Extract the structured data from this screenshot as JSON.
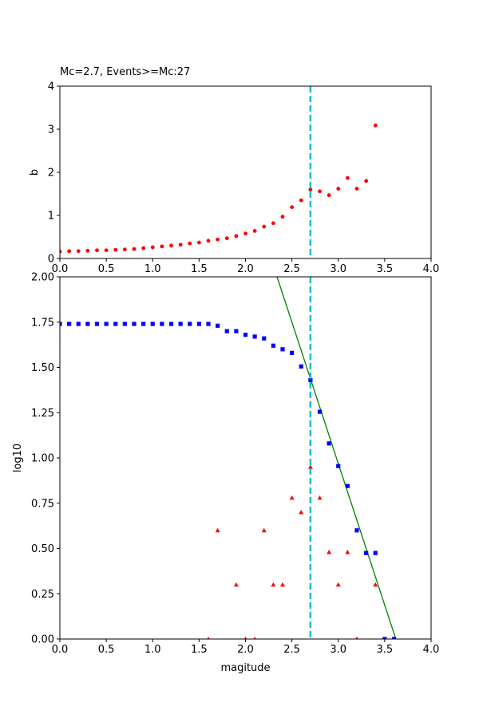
{
  "chart_data": [
    {
      "type": "scatter",
      "title": "Mc=2.7, Events>=Mc:27",
      "xlabel": "",
      "ylabel": "b",
      "xlim": [
        0,
        4
      ],
      "ylim": [
        0,
        4
      ],
      "xticks": [
        "0.0",
        "0.5",
        "1.0",
        "1.5",
        "2.0",
        "2.5",
        "3.0",
        "3.5",
        "4.0"
      ],
      "yticks": [
        "0",
        "1",
        "2",
        "3",
        "4"
      ],
      "grid": false,
      "mc_line": {
        "x": 2.7,
        "color": "#17becf"
      },
      "series": [
        {
          "color": "#ff0000",
          "marker": "circle",
          "x": [
            0.0,
            0.1,
            0.2,
            0.3,
            0.4,
            0.5,
            0.6,
            0.7,
            0.8,
            0.9,
            1.0,
            1.1,
            1.2,
            1.3,
            1.4,
            1.5,
            1.6,
            1.7,
            1.8,
            1.9,
            2.0,
            2.1,
            2.2,
            2.3,
            2.4,
            2.5,
            2.6,
            2.7,
            2.8,
            2.9,
            3.0,
            3.1,
            3.2,
            3.3,
            3.4
          ],
          "y": [
            0.16,
            0.17,
            0.17,
            0.18,
            0.19,
            0.19,
            0.2,
            0.21,
            0.22,
            0.24,
            0.26,
            0.28,
            0.3,
            0.32,
            0.35,
            0.37,
            0.41,
            0.44,
            0.47,
            0.52,
            0.58,
            0.64,
            0.74,
            0.82,
            0.97,
            1.19,
            1.35,
            1.6,
            1.56,
            1.47,
            1.62,
            1.87,
            1.62,
            1.8,
            3.09
          ]
        }
      ]
    },
    {
      "type": "scatter",
      "title": "",
      "xlabel": "magitude",
      "ylabel": "log10",
      "xlim": [
        0,
        4
      ],
      "ylim": [
        0,
        2
      ],
      "xticks": [
        "0.0",
        "0.5",
        "1.0",
        "1.5",
        "2.0",
        "2.5",
        "3.0",
        "3.5",
        "4.0"
      ],
      "yticks": [
        "0.00",
        "0.25",
        "0.50",
        "0.75",
        "1.00",
        "1.25",
        "1.50",
        "1.75",
        "2.00"
      ],
      "grid": false,
      "mc_line": {
        "x": 2.7,
        "color": "#17becf"
      },
      "fit_line": {
        "color": "#008000",
        "x": [
          2.34,
          3.62
        ],
        "y": [
          2.0,
          0.0
        ]
      },
      "series": [
        {
          "color": "#0000ff",
          "marker": "square",
          "x": [
            0.0,
            0.1,
            0.2,
            0.3,
            0.4,
            0.5,
            0.6,
            0.7,
            0.8,
            0.9,
            1.0,
            1.1,
            1.2,
            1.3,
            1.4,
            1.5,
            1.6,
            1.7,
            1.8,
            1.9,
            2.0,
            2.1,
            2.2,
            2.3,
            2.4,
            2.5,
            2.6,
            2.7,
            2.8,
            2.9,
            3.0,
            3.1,
            3.2,
            3.3,
            3.4,
            3.5,
            3.6
          ],
          "y": [
            1.74,
            1.74,
            1.74,
            1.74,
            1.74,
            1.74,
            1.74,
            1.74,
            1.74,
            1.74,
            1.74,
            1.74,
            1.74,
            1.74,
            1.74,
            1.74,
            1.74,
            1.73,
            1.7,
            1.7,
            1.68,
            1.67,
            1.66,
            1.62,
            1.6,
            1.58,
            1.505,
            1.43,
            1.255,
            1.08,
            0.955,
            0.845,
            0.6,
            0.475,
            0.475,
            0.0,
            0.0
          ]
        },
        {
          "color": "#ff0000",
          "marker": "triangle",
          "x": [
            1.6,
            1.7,
            1.9,
            2.0,
            2.1,
            2.2,
            2.3,
            2.4,
            2.5,
            2.6,
            2.7,
            2.8,
            2.9,
            3.0,
            3.1,
            3.2,
            3.4
          ],
          "y": [
            0.0,
            0.6,
            0.3,
            0.0,
            0.0,
            0.6,
            0.3,
            0.3,
            0.78,
            0.7,
            0.95,
            0.78,
            0.48,
            0.3,
            0.48,
            0.0,
            0.3
          ]
        }
      ]
    }
  ]
}
